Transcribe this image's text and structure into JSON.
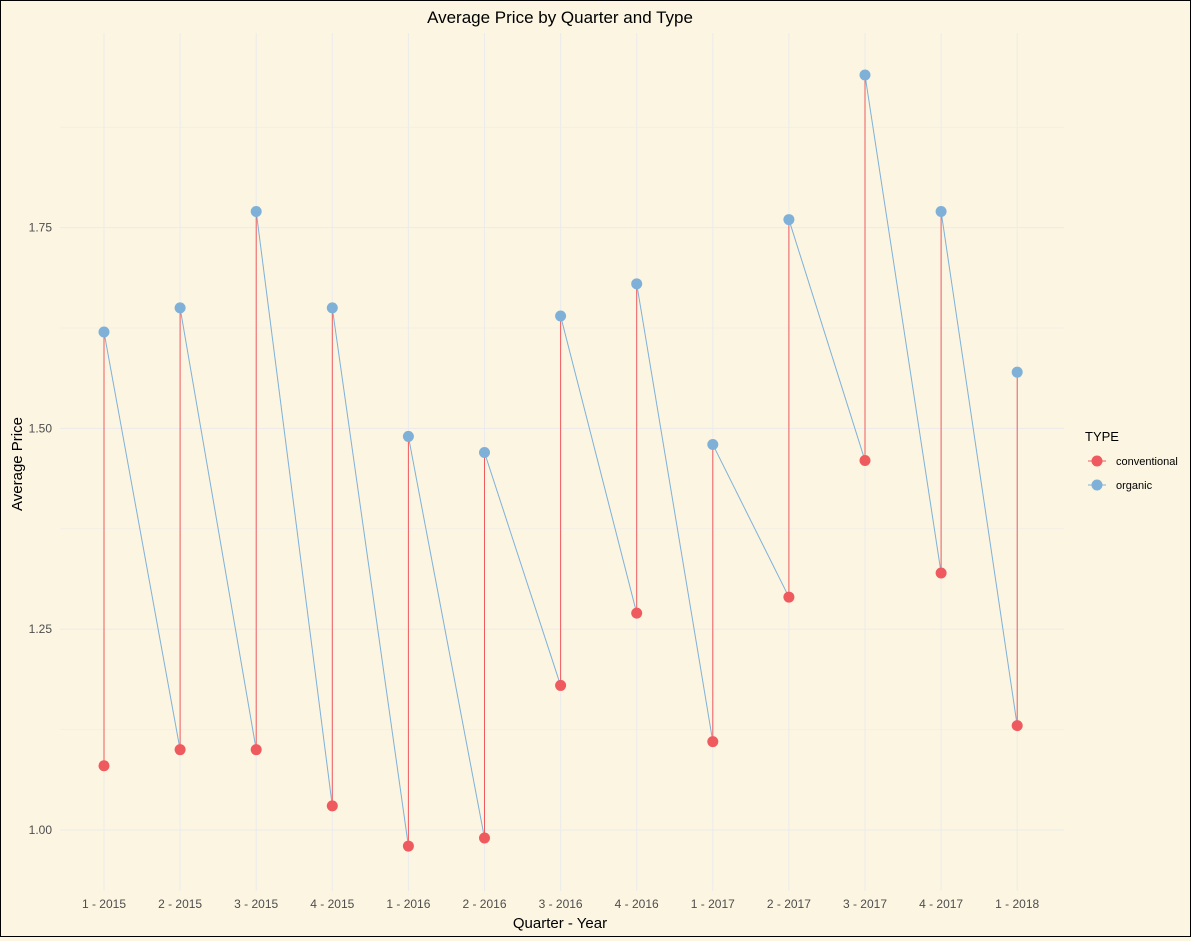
{
  "chart_data": {
    "type": "line",
    "title": "Average Price by Quarter and Type",
    "xlabel": "Quarter - Year",
    "ylabel": "Average Price",
    "categories": [
      "1 - 2015",
      "2 - 2015",
      "3 - 2015",
      "4 - 2015",
      "1 - 2016",
      "2 - 2016",
      "3 - 2016",
      "4 - 2016",
      "1 - 2017",
      "2 - 2017",
      "3 - 2017",
      "4 - 2017",
      "1 - 2018"
    ],
    "ylim": [
      0.93,
      1.95
    ],
    "yticks": [
      1.0,
      1.25,
      1.5,
      1.75
    ],
    "ytick_labels": [
      "1.00",
      "1.25",
      "1.50",
      "1.75"
    ],
    "grid": true,
    "series": [
      {
        "name": "conventional",
        "color": "#ef5a5f",
        "values": [
          1.08,
          1.1,
          1.1,
          1.03,
          0.98,
          0.99,
          1.18,
          1.27,
          1.11,
          1.29,
          1.46,
          1.32,
          1.13
        ]
      },
      {
        "name": "organic",
        "color": "#7fb1d8",
        "values": [
          1.62,
          1.65,
          1.77,
          1.65,
          1.49,
          1.47,
          1.64,
          1.68,
          1.48,
          1.76,
          1.94,
          1.77,
          1.57
        ]
      }
    ],
    "legend": {
      "title": "TYPE",
      "position": "right"
    }
  }
}
